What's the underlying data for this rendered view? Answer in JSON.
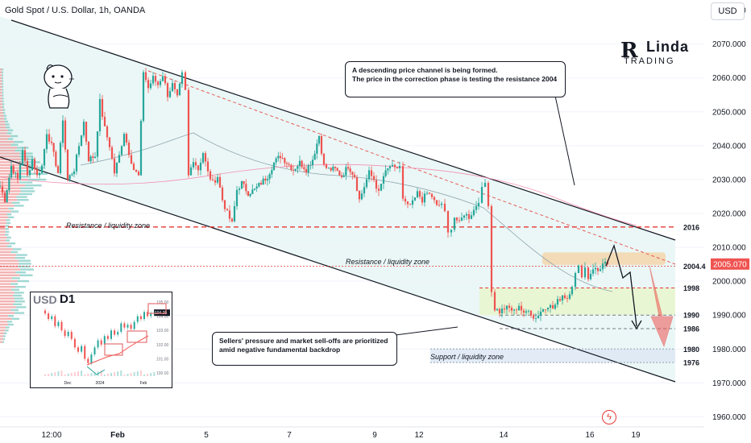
{
  "header": {
    "title": "Gold Spot / U.S. Dollar, 1h, OANDA",
    "currency_button": "USD"
  },
  "brand": {
    "initial": "R",
    "name": "Linda",
    "sub": "TRADING"
  },
  "notes": {
    "top": "A descending price channel is being formed.\nThe price in the correction phase is testing the resistance 2004",
    "bottom": "Sellers' pressure and market sell-offs are prioritized\namid negative fundamental backdrop"
  },
  "zone_labels": {
    "resistance_left": "Resistance / liquidity zone",
    "resistance_mid": "Resistance / liquidity zone",
    "support": "Support / liquidity zone"
  },
  "inset": {
    "symbol": "USD",
    "timeframe": "D1",
    "x_labels": [
      "Dec",
      "2024",
      "Feb"
    ],
    "y_labels": [
      "105.00",
      "104.00",
      "103.00",
      "102.00",
      "101.00",
      "100.00"
    ],
    "last_value": "104.25"
  },
  "colors": {
    "up": "#26a69a",
    "down": "#ef5350",
    "level_red": "#e53935",
    "channel": "#131722",
    "last_price": "#ef5350"
  },
  "chart_data": {
    "type": "candlestick",
    "x_labels": [
      "12:00",
      "Feb",
      "5",
      "7",
      "9",
      "12",
      "14",
      "16",
      "19"
    ],
    "y_ticks": [
      "2080.000",
      "2070.000",
      "2060.000",
      "2050.000",
      "2040.000",
      "2030.000",
      "2020.000",
      "2010.000",
      "2000.000",
      "1990.000",
      "1980.000",
      "1970.000",
      "1960.000"
    ],
    "ylim": [
      1957,
      2083
    ],
    "last_price": "2005.070",
    "levels": [
      {
        "label": "2016",
        "value": 2016,
        "style": "red-dashed"
      },
      {
        "label": "2004.4",
        "value": 2004.4,
        "style": "red-dotted"
      },
      {
        "label": "1998",
        "value": 1998,
        "style": "red-dashed-short"
      },
      {
        "label": "1990",
        "value": 1990,
        "style": "gray-dashed"
      },
      {
        "label": "1986",
        "value": 1986,
        "style": "gray-dashed"
      },
      {
        "label": "1980",
        "value": 1980,
        "style": "blue-dotted"
      },
      {
        "label": "1976",
        "value": 1976,
        "style": "blue-dotted"
      }
    ],
    "anchors": [
      [
        0,
        2028
      ],
      [
        6,
        2024
      ],
      [
        14,
        2034
      ],
      [
        22,
        2030
      ],
      [
        28,
        2039
      ],
      [
        34,
        2031
      ],
      [
        40,
        2036
      ],
      [
        46,
        2031
      ],
      [
        52,
        2034
      ],
      [
        58,
        2044
      ],
      [
        64,
        2040
      ],
      [
        72,
        2032
      ],
      [
        78,
        2048
      ],
      [
        84,
        2030
      ],
      [
        92,
        2033
      ],
      [
        98,
        2040
      ],
      [
        104,
        2047
      ],
      [
        110,
        2036
      ],
      [
        118,
        2037
      ],
      [
        124,
        2053
      ],
      [
        130,
        2045
      ],
      [
        136,
        2040
      ],
      [
        142,
        2032
      ],
      [
        148,
        2037
      ],
      [
        154,
        2044
      ],
      [
        160,
        2038
      ],
      [
        166,
        2033
      ],
      [
        172,
        2031
      ],
      [
        178,
        2062
      ],
      [
        184,
        2057
      ],
      [
        190,
        2060
      ],
      [
        196,
        2058
      ],
      [
        202,
        2061
      ],
      [
        208,
        2055
      ],
      [
        214,
        2058
      ],
      [
        220,
        2054
      ],
      [
        226,
        2061
      ],
      [
        230,
        2056
      ],
      [
        234,
        2031
      ],
      [
        240,
        2036
      ],
      [
        246,
        2033
      ],
      [
        252,
        2038
      ],
      [
        258,
        2032
      ],
      [
        264,
        2029
      ],
      [
        270,
        2031
      ],
      [
        276,
        2024
      ],
      [
        282,
        2020
      ],
      [
        288,
        2017
      ],
      [
        294,
        2027
      ],
      [
        300,
        2029
      ],
      [
        308,
        2026
      ],
      [
        316,
        2027
      ],
      [
        324,
        2029
      ],
      [
        332,
        2031
      ],
      [
        340,
        2035
      ],
      [
        348,
        2037
      ],
      [
        356,
        2035
      ],
      [
        364,
        2033
      ],
      [
        372,
        2035
      ],
      [
        380,
        2033
      ],
      [
        388,
        2036
      ],
      [
        396,
        2043
      ],
      [
        402,
        2034
      ],
      [
        408,
        2033
      ],
      [
        416,
        2033
      ],
      [
        424,
        2031
      ],
      [
        432,
        2034
      ],
      [
        440,
        2031
      ],
      [
        446,
        2024
      ],
      [
        452,
        2028
      ],
      [
        458,
        2032
      ],
      [
        464,
        2030
      ],
      [
        470,
        2026
      ],
      [
        476,
        2031
      ],
      [
        484,
        2034
      ],
      [
        490,
        2033
      ],
      [
        496,
        2034
      ],
      [
        500,
        2024
      ],
      [
        506,
        2022
      ],
      [
        512,
        2023
      ],
      [
        518,
        2026
      ],
      [
        524,
        2024
      ],
      [
        530,
        2026
      ],
      [
        536,
        2025
      ],
      [
        542,
        2022
      ],
      [
        548,
        2023
      ],
      [
        552,
        2020
      ],
      [
        556,
        2014
      ],
      [
        560,
        2016
      ],
      [
        564,
        2019
      ],
      [
        570,
        2017
      ],
      [
        576,
        2020
      ],
      [
        582,
        2019
      ],
      [
        588,
        2021
      ],
      [
        594,
        2024
      ],
      [
        598,
        2027
      ],
      [
        602,
        2029
      ],
      [
        606,
        2023
      ],
      [
        610,
        1997
      ],
      [
        614,
        1992
      ],
      [
        620,
        1991
      ],
      [
        626,
        1992
      ],
      [
        632,
        1992
      ],
      [
        638,
        1991
      ],
      [
        644,
        1993
      ],
      [
        650,
        1990
      ],
      [
        656,
        1992
      ],
      [
        662,
        1989
      ],
      [
        668,
        1990
      ],
      [
        674,
        1992
      ],
      [
        680,
        1993
      ],
      [
        686,
        1992
      ],
      [
        692,
        1994
      ],
      [
        698,
        1996
      ],
      [
        704,
        1995
      ],
      [
        710,
        1999
      ],
      [
        714,
        2002
      ],
      [
        718,
        2004
      ],
      [
        722,
        2002
      ],
      [
        726,
        2004
      ],
      [
        730,
        2001
      ],
      [
        736,
        2004
      ],
      [
        742,
        2003
      ],
      [
        748,
        2005
      ],
      [
        754,
        2005.07
      ]
    ]
  }
}
